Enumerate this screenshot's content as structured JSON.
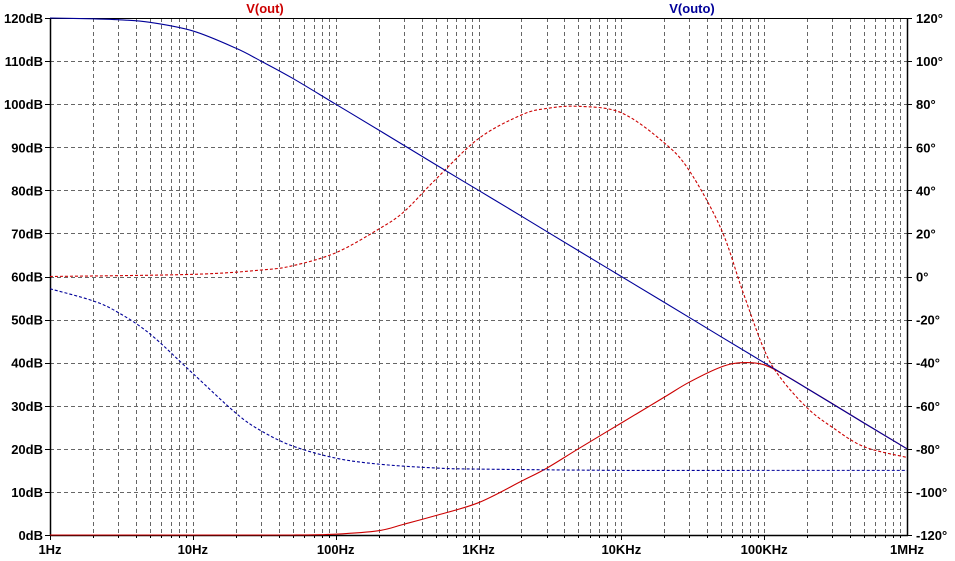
{
  "chart_data": {
    "type": "line",
    "title": "",
    "x_scale": "log",
    "xlim": [
      1,
      1000000
    ],
    "x_ticks": [
      1,
      10,
      100,
      1000,
      10000,
      100000,
      1000000
    ],
    "x_tick_labels": [
      "1Hz",
      "10Hz",
      "100Hz",
      "1KHz",
      "10KHz",
      "100KHz",
      "1MHz"
    ],
    "y_left": {
      "lim": [
        0,
        120
      ],
      "ticks": [
        0,
        10,
        20,
        30,
        40,
        50,
        60,
        70,
        80,
        90,
        100,
        110,
        120
      ],
      "tick_labels": [
        "0dB",
        "10dB",
        "20dB",
        "30dB",
        "40dB",
        "50dB",
        "60dB",
        "70dB",
        "80dB",
        "90dB",
        "100dB",
        "110dB",
        "120dB"
      ]
    },
    "y_right": {
      "lim": [
        -120,
        120
      ],
      "ticks": [
        -120,
        -100,
        -80,
        -60,
        -40,
        -20,
        0,
        20,
        40,
        60,
        80,
        100,
        120
      ],
      "tick_labels": [
        "-120°",
        "-100°",
        "-80°",
        "-60°",
        "-40°",
        "-20°",
        "0°",
        "20°",
        "40°",
        "60°",
        "80°",
        "100°",
        "120°"
      ]
    },
    "grid": true,
    "legend": [
      "V(out)",
      "V(outo)"
    ],
    "series": [
      {
        "name": "V(out)",
        "quantity": "magnitude",
        "axis": "left",
        "color": "#cc0000",
        "style": "solid",
        "x": [
          1,
          10,
          50,
          100,
          200,
          300,
          500,
          1000,
          2000,
          3000,
          5000,
          10000,
          20000,
          30000,
          50000,
          70000,
          100000,
          150000,
          200000,
          300000,
          500000,
          1000000
        ],
        "y": [
          0,
          0,
          0,
          0.2,
          1,
          2.5,
          4.5,
          7.5,
          12.5,
          15.5,
          20,
          26,
          32,
          35.5,
          39,
          40,
          39.5,
          36.5,
          34,
          30.5,
          26,
          20
        ]
      },
      {
        "name": "V(out)",
        "quantity": "phase",
        "axis": "right",
        "color": "#cc0000",
        "style": "dashed",
        "x": [
          1,
          10,
          30,
          50,
          100,
          200,
          300,
          500,
          1000,
          2000,
          3000,
          5000,
          10000,
          20000,
          30000,
          50000,
          70000,
          100000,
          130000,
          200000,
          300000,
          500000,
          1000000
        ],
        "y": [
          0,
          1,
          3,
          5,
          11,
          22,
          30,
          45,
          64,
          75,
          78,
          79,
          76,
          62,
          49,
          22,
          -6,
          -34,
          -47,
          -61,
          -70,
          -79,
          -84
        ]
      },
      {
        "name": "V(outo)",
        "quantity": "magnitude",
        "axis": "left",
        "color": "#000099",
        "style": "solid",
        "x": [
          1,
          2,
          3,
          5,
          10,
          20,
          30,
          50,
          100,
          200,
          500,
          1000,
          2000,
          5000,
          10000,
          20000,
          50000,
          100000,
          200000,
          500000,
          1000000
        ],
        "y": [
          120,
          119.8,
          119.6,
          119,
          117,
          113,
          110,
          106,
          100,
          94,
          86,
          80,
          74,
          66,
          60,
          54,
          46,
          40,
          34,
          26,
          20
        ]
      },
      {
        "name": "V(outo)",
        "quantity": "phase",
        "axis": "right",
        "color": "#000099",
        "style": "dashed",
        "x": [
          1,
          2,
          3,
          5,
          10,
          20,
          30,
          50,
          100,
          200,
          500,
          1000,
          10000,
          100000,
          1000000
        ],
        "y": [
          -5.7,
          -11.3,
          -16.7,
          -26.6,
          -45,
          -63.4,
          -71.6,
          -78.7,
          -84.3,
          -87.1,
          -88.9,
          -89.4,
          -90,
          -90,
          -90
        ]
      }
    ]
  }
}
